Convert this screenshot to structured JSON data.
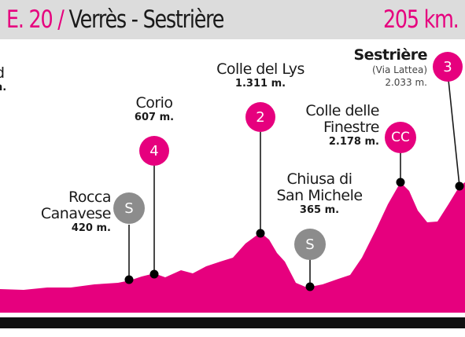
{
  "header": {
    "stage": "E. 20",
    "slash": "/",
    "route": "Verrès - Sestrière",
    "distance": "205 km."
  },
  "cut_label": {
    "line1": "d",
    "line2": "n."
  },
  "points": [
    {
      "id": "rocca",
      "name_lines": [
        "Rocca",
        "Canavese"
      ],
      "altitude": "420 m.",
      "badge": "S",
      "badge_color": "#8c8c8c"
    },
    {
      "id": "corio",
      "name_lines": [
        "Corio"
      ],
      "altitude": "607 m.",
      "badge": "4",
      "badge_color": "#e6007e"
    },
    {
      "id": "lys",
      "name_lines": [
        "Colle del Lys"
      ],
      "altitude": "1.311 m.",
      "badge": "2",
      "badge_color": "#e6007e"
    },
    {
      "id": "chiusa",
      "name_lines": [
        "Chiusa di",
        "San Michele"
      ],
      "altitude": "365 m.",
      "badge": "S",
      "badge_color": "#8c8c8c"
    },
    {
      "id": "finestre",
      "name_lines": [
        "Colle delle",
        "Finestre"
      ],
      "altitude": "2.178 m.",
      "badge": "CC",
      "badge_color": "#e6007e"
    },
    {
      "id": "sestriere",
      "name_lines": [
        "Sestrière"
      ],
      "subtitle": "(Via Lattea)",
      "altitude": "2.033 m.",
      "badge": "3",
      "badge_color": "#e6007e"
    }
  ],
  "colors": {
    "profile": "#e6007e",
    "header_bg": "#dcdcdc",
    "accent": "#e6007e"
  }
}
